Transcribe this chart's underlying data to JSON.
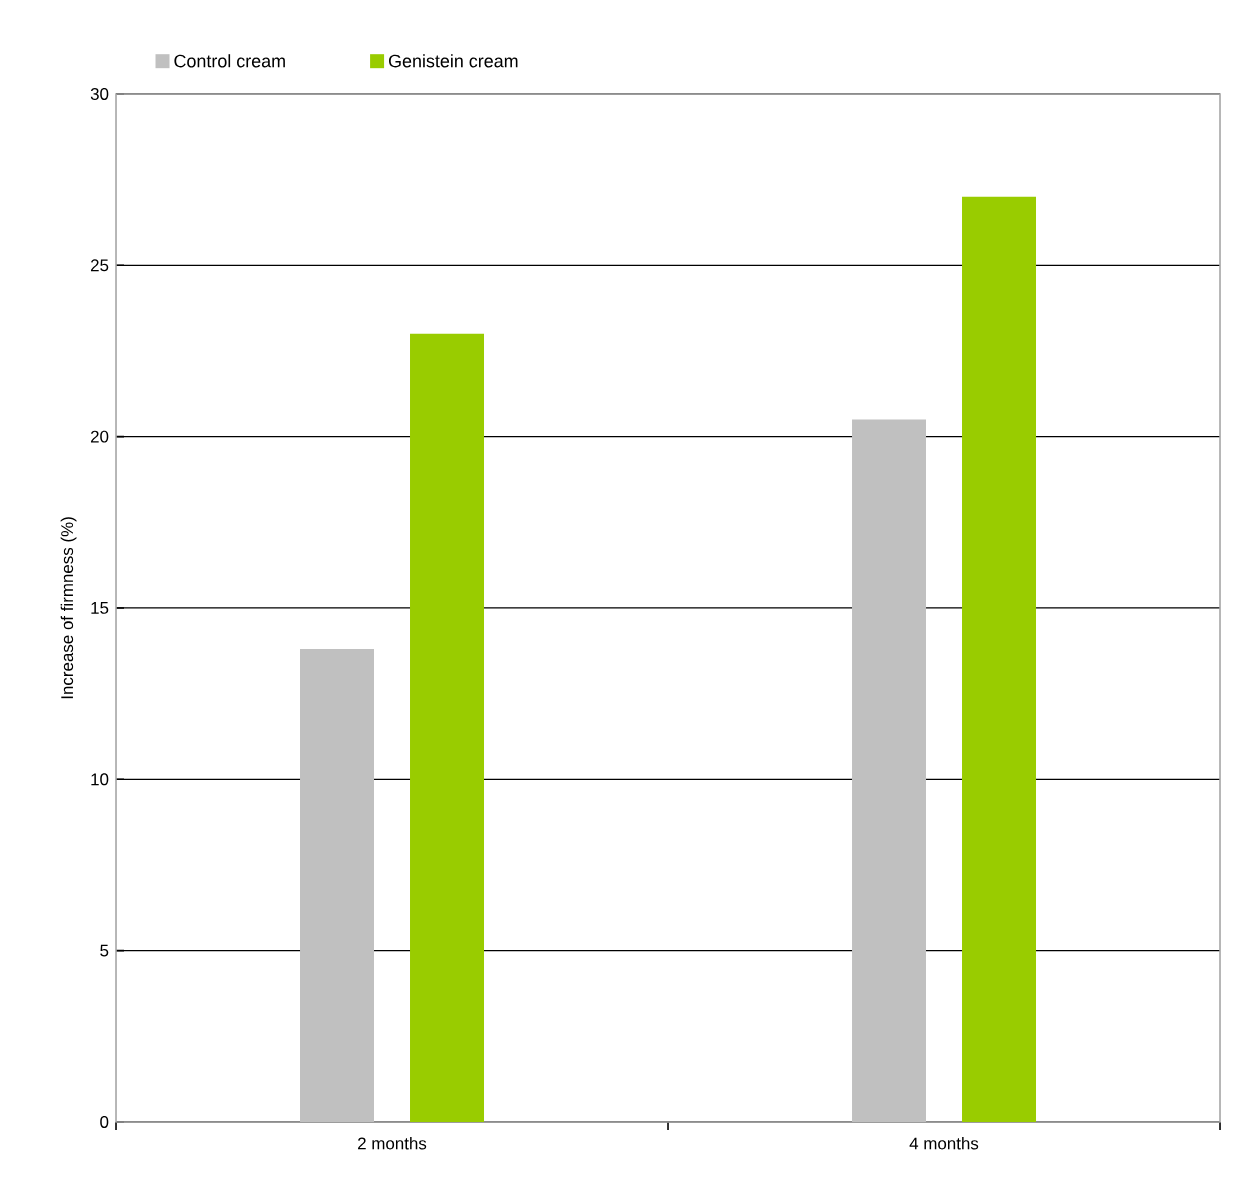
{
  "chart_data": {
    "type": "bar",
    "ylabel": "Increase of firmness (%)",
    "categories": [
      "2 months",
      "4 months"
    ],
    "series": [
      {
        "name": "Control cream",
        "color": "#c0c0c0",
        "values": [
          13.8,
          20.5
        ]
      },
      {
        "name": "Genistein cream",
        "color": "#99cc00",
        "values": [
          23.0,
          27.0
        ]
      }
    ],
    "ylim": [
      0,
      30
    ],
    "yticks": [
      0,
      5,
      10,
      15,
      20,
      25,
      30
    ],
    "grid": "y",
    "legend": "top left"
  }
}
